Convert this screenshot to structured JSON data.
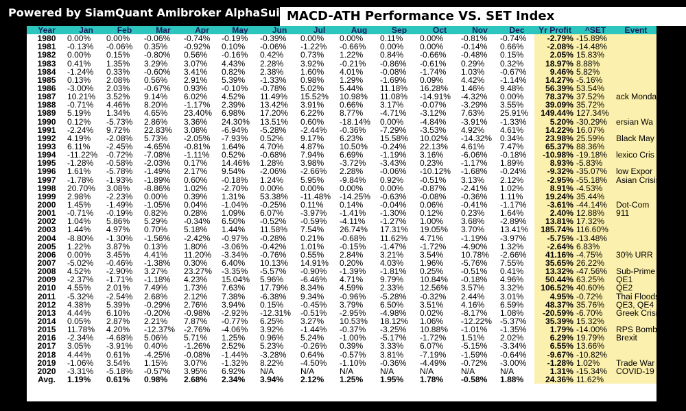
{
  "header": {
    "brand": "Powered by SiamQuant Amibroker AlphaSuite",
    "title": "MACD-ATH Performance VS. SET Index"
  },
  "colors": {
    "header_bg": "#2dc6bf",
    "highlight_bg": "#fbf0ad",
    "frame_bg": "#000000"
  },
  "table": {
    "columns": [
      "Year",
      "Jan",
      "Feb",
      "Mar",
      "Apr",
      "May",
      "Jun",
      "Jul",
      "Aug",
      "Sep",
      "Oct",
      "Nov",
      "Dec",
      "Yr Profit",
      "^SET",
      "Event"
    ],
    "rows": [
      [
        "1980",
        "0.00%",
        "0.00%",
        "-0.06%",
        "-0.74%",
        "-0.19%",
        "-0.39%",
        "0.00%",
        "0.00%",
        "0.11%",
        "0.00%",
        "-0.81%",
        "-0.74%",
        "-2.79%",
        "-15.89%",
        ""
      ],
      [
        "1981",
        "-0.13%",
        "-0.06%",
        "0.35%",
        "-0.92%",
        "0.10%",
        "-0.06%",
        "-1.22%",
        "-0.66%",
        "0.00%",
        "0.00%",
        "-0.14%",
        "0.66%",
        "-2.08%",
        "-14.48%",
        ""
      ],
      [
        "1982",
        "0.00%",
        "0.15%",
        "-0.80%",
        "0.56%",
        "-0.16%",
        "0.42%",
        "0.73%",
        "1.22%",
        "0.84%",
        "-0.66%",
        "-0.48%",
        "0.15%",
        "2.05%",
        "15.83%",
        ""
      ],
      [
        "1983",
        "0.41%",
        "1.35%",
        "3.29%",
        "3.07%",
        "4.43%",
        "2.28%",
        "3.92%",
        "-0.21%",
        "-0.86%",
        "-0.61%",
        "0.29%",
        "0.32%",
        "18.97%",
        "8.88%",
        ""
      ],
      [
        "1984",
        "-1.24%",
        "0.33%",
        "-0.60%",
        "3.41%",
        "0.82%",
        "2.38%",
        "1.60%",
        "4.01%",
        "-0.08%",
        "-1.74%",
        "1.03%",
        "-0.67%",
        "9.46%",
        "5.82%",
        ""
      ],
      [
        "1985",
        "0.13%",
        "2.08%",
        "0.56%",
        "2.91%",
        "5.39%",
        "-1.33%",
        "0.98%",
        "1.29%",
        "-1.69%",
        "0.09%",
        "4.42%",
        "-1.14%",
        "14.27%",
        "-5.16%",
        ""
      ],
      [
        "1986",
        "-3.00%",
        "2.03%",
        "-0.67%",
        "0.93%",
        "-0.10%",
        "-0.78%",
        "5.02%",
        "5.44%",
        "11.18%",
        "16.28%",
        "1.46%",
        "9.48%",
        "56.39%",
        "53.54%",
        ""
      ],
      [
        "1987",
        "10.21%",
        "3.52%",
        "9.14%",
        "6.02%",
        "4.52%",
        "11.49%",
        "15.52%",
        "10.98%",
        "11.08%",
        "-14.91%",
        "-4.32%",
        "0.00%",
        "78.37%",
        "37.52%",
        "ack Monda"
      ],
      [
        "1988",
        "-0.71%",
        "4.46%",
        "8.20%",
        "-1.17%",
        "2.39%",
        "13.42%",
        "3.91%",
        "0.66%",
        "3.17%",
        "-0.07%",
        "-3.29%",
        "3.55%",
        "39.09%",
        "35.72%",
        ""
      ],
      [
        "1989",
        "5.19%",
        "1.34%",
        "4.65%",
        "23.40%",
        "6.98%",
        "17.20%",
        "6.22%",
        "8.77%",
        "-4.71%",
        "-3.12%",
        "7.63%",
        "25.91%",
        "149.44%",
        "127.34%",
        ""
      ],
      [
        "1990",
        "0.12%",
        "-5.73%",
        "2.86%",
        "3.36%",
        "24.30%",
        "13.51%",
        "0.60%",
        "-18.14%",
        "0.00%",
        "-4.84%",
        "-3.91%",
        "-1.33%",
        "5.20%",
        "-30.29%",
        "ersian Wa"
      ],
      [
        "1991",
        "-2.24%",
        "9.72%",
        "22.83%",
        "3.08%",
        "-6.94%",
        "-5.28%",
        "-2.44%",
        "-0.36%",
        "-7.29%",
        "-3.53%",
        "4.92%",
        "4.61%",
        "14.22%",
        "16.07%",
        ""
      ],
      [
        "1992",
        "4.19%",
        "-2.08%",
        "5.73%",
        "-2.05%",
        "-7.93%",
        "0.52%",
        "9.17%",
        "6.23%",
        "15.58%",
        "10.02%",
        "-14.32%",
        "0.34%",
        "23.98%",
        "25.59%",
        "Black May"
      ],
      [
        "1993",
        "6.11%",
        "-2.45%",
        "-4.65%",
        "-0.81%",
        "1.64%",
        "4.70%",
        "4.87%",
        "10.50%",
        "-0.24%",
        "22.13%",
        "4.61%",
        "7.47%",
        "65.37%",
        "88.36%",
        ""
      ],
      [
        "1994",
        "-11.22%",
        "-0.72%",
        "-7.08%",
        "-1.11%",
        "0.52%",
        "-0.68%",
        "7.94%",
        "6.69%",
        "-1.19%",
        "3.16%",
        "-6.06%",
        "-0.18%",
        "-10.98%",
        "-19.18%",
        "lexico Cris"
      ],
      [
        "1995",
        "-1.28%",
        "-0.58%",
        "-2.03%",
        "0.17%",
        "14.46%",
        "1.28%",
        "3.98%",
        "-3.72%",
        "-3.43%",
        "0.23%",
        "-1.17%",
        "1.89%",
        "8.93%",
        "-5.83%",
        ""
      ],
      [
        "1996",
        "1.61%",
        "-5.78%",
        "-1.49%",
        "2.17%",
        "9.54%",
        "-2.06%",
        "-2.66%",
        "2.28%",
        "-0.06%",
        "-10.12%",
        "-1.68%",
        "-0.24%",
        "-9.32%",
        "-35.07%",
        "low Expor"
      ],
      [
        "1997",
        "-1.78%",
        "-1.93%",
        "-1.89%",
        "0.60%",
        "-0.18%",
        "1.24%",
        "5.95%",
        "-9.84%",
        "0.92%",
        "-0.51%",
        "3.13%",
        "2.12%",
        "-2.95%",
        "-55.18%",
        "Asian Crisis"
      ],
      [
        "1998",
        "20.70%",
        "3.08%",
        "-8.86%",
        "1.02%",
        "-2.70%",
        "0.00%",
        "0.00%",
        "0.00%",
        "0.00%",
        "-0.87%",
        "-2.41%",
        "1.02%",
        "8.91%",
        "-4.53%",
        ""
      ],
      [
        "1999",
        "2.98%",
        "-2.23%",
        "0.00%",
        "0.39%",
        "1.31%",
        "53.38%",
        "-11.48%",
        "-14.25%",
        "-0.63%",
        "-0.08%",
        "-0.36%",
        "1.11%",
        "19.24%",
        "35.44%",
        ""
      ],
      [
        "2000",
        "1.45%",
        "-1.49%",
        "-1.05%",
        "0.04%",
        "-1.04%",
        "-0.25%",
        "0.11%",
        "0.14%",
        "-0.04%",
        "0.06%",
        "-0.41%",
        "-1.17%",
        "-3.61%",
        "-44.14%",
        "Dot-Com"
      ],
      [
        "2001",
        "-0.71%",
        "-0.19%",
        "0.82%",
        "0.28%",
        "1.09%",
        "6.07%",
        "-3.97%",
        "-1.41%",
        "-1.30%",
        "0.12%",
        "0.23%",
        "1.64%",
        "2.40%",
        "12.88%",
        "911"
      ],
      [
        "2002",
        "1.04%",
        "5.86%",
        "5.29%",
        "-0.34%",
        "6.50%",
        "-0.52%",
        "-0.59%",
        "-4.11%",
        "-1.27%",
        "1.00%",
        "3.68%",
        "-2.89%",
        "13.81%",
        "17.32%",
        ""
      ],
      [
        "2003",
        "1.44%",
        "4.97%",
        "0.70%",
        "5.18%",
        "1.44%",
        "11.58%",
        "7.54%",
        "26.74%",
        "17.31%",
        "19.05%",
        "3.70%",
        "13.41%",
        "185.74%",
        "116.60%",
        ""
      ],
      [
        "2004",
        "-8.80%",
        "-1.30%",
        "-1.56%",
        "-2.42%",
        "-0.97%",
        "-0.28%",
        "0.21%",
        "-0.68%",
        "11.62%",
        "4.71%",
        "-1.19%",
        "-3.97%",
        "-5.75%",
        "-13.48%",
        ""
      ],
      [
        "2005",
        "1.22%",
        "3.87%",
        "0.13%",
        "1.80%",
        "-3.06%",
        "-0.42%",
        "1.01%",
        "-0.15%",
        "-1.47%",
        "-1.72%",
        "-4.90%",
        "1.32%",
        "-2.64%",
        "6.83%",
        ""
      ],
      [
        "2006",
        "0.00%",
        "3.45%",
        "4.41%",
        "11.20%",
        "-3.34%",
        "-0.76%",
        "0.55%",
        "2.84%",
        "3.21%",
        "3.54%",
        "10.78%",
        "-2.66%",
        "41.16%",
        "-4.75%",
        "30% URR"
      ],
      [
        "2007",
        "-5.02%",
        "-0.46%",
        "-1.38%",
        "0.30%",
        "6.40%",
        "10.13%",
        "14.91%",
        "0.20%",
        "4.03%",
        "1.96%",
        "-5.76%",
        "7.55%",
        "35.65%",
        "26.22%",
        ""
      ],
      [
        "2008",
        "4.52%",
        "-2.90%",
        "3.27%",
        "23.27%",
        "-3.35%",
        "-5.57%",
        "-0.90%",
        "-1.39%",
        "-1.81%",
        "0.25%",
        "-0.51%",
        "0.41%",
        "13.32%",
        "-47.56%",
        "Sub-Prime"
      ],
      [
        "2009",
        "-2.37%",
        "-1.71%",
        "-1.18%",
        "4.23%",
        "15.04%",
        "5.96%",
        "-6.46%",
        "4.71%",
        "9.79%",
        "10.84%",
        "-0.18%",
        "4.96%",
        "50.44%",
        "63.25%",
        "QE1"
      ],
      [
        "2010",
        "4.55%",
        "2.01%",
        "7.49%",
        "1.73%",
        "7.63%",
        "17.79%",
        "8.34%",
        "4.59%",
        "2.33%",
        "12.56%",
        "3.57%",
        "3.32%",
        "106.52%",
        "40.60%",
        "QE2"
      ],
      [
        "2011",
        "-5.32%",
        "-2.54%",
        "2.68%",
        "2.12%",
        "7.38%",
        "-6.38%",
        "9.34%",
        "-0.96%",
        "-5.28%",
        "-0.32%",
        "2.44%",
        "3.01%",
        "4.95%",
        "-0.72%",
        "Thai Floods"
      ],
      [
        "2012",
        "4.38%",
        "5.39%",
        "-0.29%",
        "2.76%",
        "3.94%",
        "0.15%",
        "-0.45%",
        "3.79%",
        "6.50%",
        "3.51%",
        "4.16%",
        "6.59%",
        "48.37%",
        "35.76%",
        "QE3, QE4"
      ],
      [
        "2013",
        "4.44%",
        "6.10%",
        "-0.20%",
        "-0.98%",
        "-2.92%",
        "-12.31%",
        "-0.51%",
        "-2.95%",
        "-4.98%",
        "0.02%",
        "-8.17%",
        "1.08%",
        "-20.59%",
        "-6.70%",
        "Greek Crisi"
      ],
      [
        "2014",
        "0.05%",
        "2.87%",
        "2.21%",
        "7.87%",
        "-0.77%",
        "6.25%",
        "3.27%",
        "10.53%",
        "18.12%",
        "1.06%",
        "-12.22%",
        "-5.37%",
        "35.39%",
        "15.32%",
        ""
      ],
      [
        "2015",
        "11.78%",
        "4.20%",
        "-12.37%",
        "-2.76%",
        "-4.06%",
        "3.92%",
        "-1.44%",
        "-0.37%",
        "-3.25%",
        "10.88%",
        "-1.01%",
        "-1.35%",
        "1.79%",
        "-14.00%",
        "RPS Bomb"
      ],
      [
        "2016",
        "-2.34%",
        "-4.68%",
        "5.06%",
        "5.71%",
        "1.25%",
        "0.96%",
        "5.24%",
        "-1.00%",
        "-5.17%",
        "-1.72%",
        "1.51%",
        "2.02%",
        "6.29%",
        "19.79%",
        "Brexit"
      ],
      [
        "2017",
        "3.05%",
        "-3.91%",
        "0.40%",
        "-1.26%",
        "2.52%",
        "5.23%",
        "-0.26%",
        "0.39%",
        "3.33%",
        "6.07%",
        "-5.15%",
        "-3.34%",
        "6.55%",
        "13.66%",
        ""
      ],
      [
        "2018",
        "4.44%",
        "0.61%",
        "-4.25%",
        "-0.08%",
        "-1.44%",
        "-3.28%",
        "0.64%",
        "-0.57%",
        "3.81%",
        "-7.19%",
        "-1.59%",
        "-0.64%",
        "-9.67%",
        "-10.82%",
        ""
      ],
      [
        "2019",
        "-1.06%",
        "3.54%",
        "1.15%",
        "3.07%",
        "-1.32%",
        "8.22%",
        "-4.50%",
        "-1.10%",
        "-0.36%",
        "-4.49%",
        "-0.72%",
        "-3.00%",
        "-1.28%",
        "1.02%",
        "Trade War"
      ],
      [
        "2020",
        "-3.31%",
        "-5.18%",
        "-0.57%",
        "3.95%",
        "6.92%",
        "N/A",
        "N/A",
        "N/A",
        "N/A",
        "N/A",
        "N/A",
        "N/A",
        "1.31%",
        "-15.34%",
        "COVID-19"
      ]
    ],
    "average": [
      "Avg.",
      "1.19%",
      "0.61%",
      "0.98%",
      "2.68%",
      "2.34%",
      "3.94%",
      "2.12%",
      "1.25%",
      "1.95%",
      "1.78%",
      "-0.58%",
      "1.88%",
      "24.36%",
      "11.62%",
      ""
    ]
  }
}
